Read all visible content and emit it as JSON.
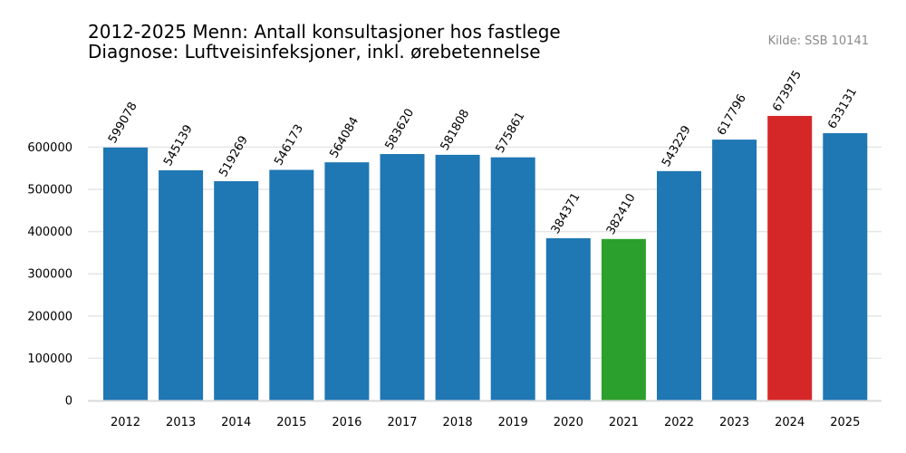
{
  "chart_data": {
    "type": "bar",
    "title": "2012-2025 Menn: Antall konsultasjoner hos fastlege",
    "subtitle": "Diagnose: Luftveisinfeksjoner, inkl. ørebetennelse",
    "source": "Kilde: SSB 10141",
    "categories": [
      "2012",
      "2013",
      "2014",
      "2015",
      "2016",
      "2017",
      "2018",
      "2019",
      "2020",
      "2021",
      "2022",
      "2023",
      "2024",
      "2025"
    ],
    "values": [
      599078,
      545139,
      519269,
      546173,
      564084,
      583620,
      581808,
      575861,
      384371,
      382410,
      543229,
      617796,
      673975,
      633131
    ],
    "colors": [
      "#1f77b4",
      "#1f77b4",
      "#1f77b4",
      "#1f77b4",
      "#1f77b4",
      "#1f77b4",
      "#1f77b4",
      "#1f77b4",
      "#1f77b4",
      "#2ca02c",
      "#1f77b4",
      "#1f77b4",
      "#d62728",
      "#1f77b4"
    ],
    "y_ticks": [
      "0",
      "100000",
      "200000",
      "300000",
      "400000",
      "500000",
      "600000"
    ],
    "ylim": [
      0,
      750000
    ],
    "grid": true,
    "xlabel": "",
    "ylabel": ""
  }
}
